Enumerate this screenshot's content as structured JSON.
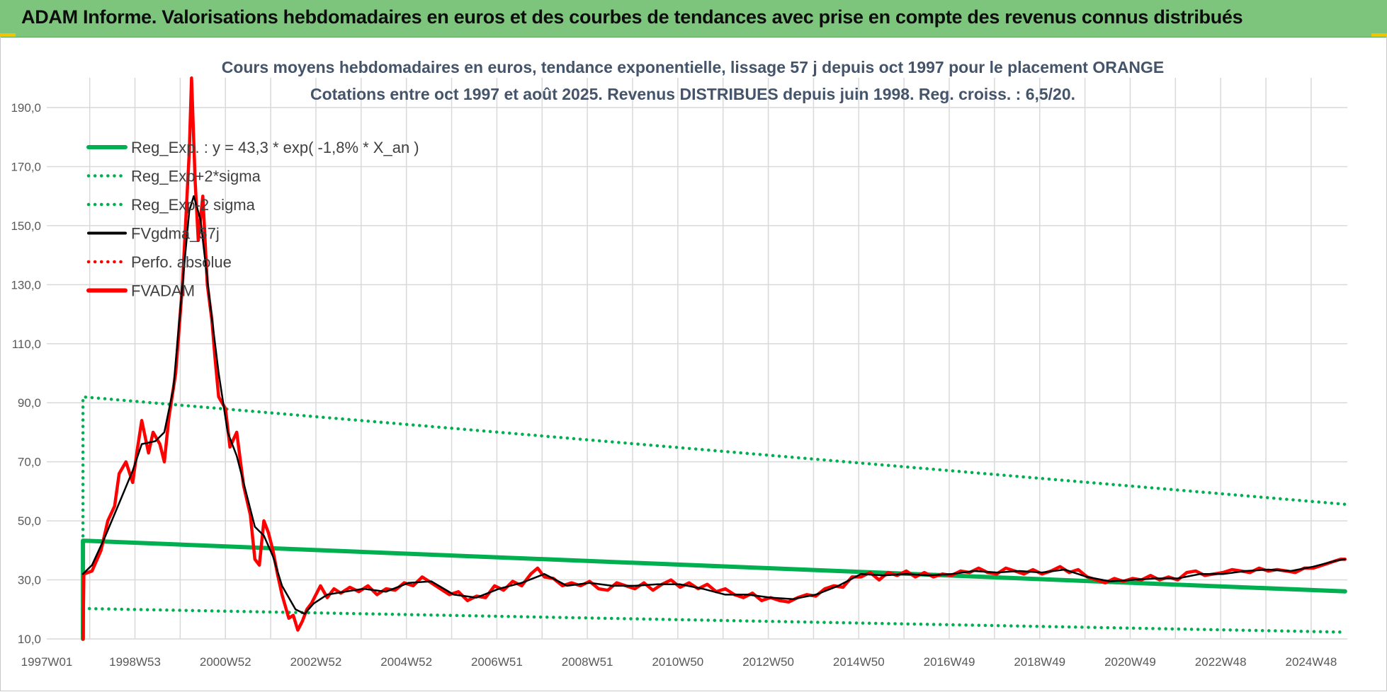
{
  "banner": {
    "title": "ADAM Informe. Valorisations hebdomadaires en euros et des courbes de tendances avec prise en compte des revenus connus distribués"
  },
  "colors": {
    "banner": "#7dc57c",
    "green": "#00b050",
    "red": "#ff0000",
    "black": "#000000",
    "grid": "#d9d9d9"
  },
  "chart_data": {
    "type": "line",
    "title_lines": [
      "Cours moyens hebdomadaires en euros, tendance exponentielle, lissage 57 j depuis oct 1997 pour le placement ORANGE",
      "Cotations entre oct 1997 et août 2025. Revenus DISTRIBUES depuis juin 1998. Reg. croiss. : 6,5/20."
    ],
    "xlabel": "",
    "ylabel": "",
    "ylim": [
      10,
      190
    ],
    "yticks": [
      "10,0",
      "30,0",
      "50,0",
      "70,0",
      "90,0",
      "110,0",
      "130,0",
      "150,0",
      "170,0",
      "190,0"
    ],
    "xlim": [
      1997.0,
      2025.75
    ],
    "xticks": [
      {
        "label": "1997W01",
        "x": 1997.0
      },
      {
        "label": "1998W53",
        "x": 1998.95
      },
      {
        "label": "2000W52",
        "x": 2000.95
      },
      {
        "label": "2002W52",
        "x": 2002.95
      },
      {
        "label": "2004W52",
        "x": 2004.95
      },
      {
        "label": "2006W51",
        "x": 2006.95
      },
      {
        "label": "2008W51",
        "x": 2008.95
      },
      {
        "label": "2010W50",
        "x": 2010.95
      },
      {
        "label": "2012W50",
        "x": 2012.95
      },
      {
        "label": "2014W50",
        "x": 2014.95
      },
      {
        "label": "2016W49",
        "x": 2016.95
      },
      {
        "label": "2018W49",
        "x": 2018.95
      },
      {
        "label": "2020W49",
        "x": 2020.95
      },
      {
        "label": "2022W48",
        "x": 2022.95
      },
      {
        "label": "2024W48",
        "x": 2024.95
      }
    ],
    "grid": true,
    "legend_position": "top-left",
    "series": [
      {
        "name": "Reg_Exp. : y = 43,3 * exp( -1,8% * X_an )",
        "color": "#00b050",
        "style": "solid",
        "points": [
          [
            1997.8,
            10.0
          ],
          [
            1997.8,
            43.3
          ],
          [
            2025.7,
            26.1
          ]
        ]
      },
      {
        "name": "Reg_Exp+2*sigma",
        "color": "#00b050",
        "style": "dotted",
        "points": [
          [
            1997.8,
            10.0
          ],
          [
            1997.8,
            92.0
          ],
          [
            2025.7,
            55.6
          ]
        ]
      },
      {
        "name": "Reg_Exp-2 sigma",
        "color": "#00b050",
        "style": "dotted",
        "points": [
          [
            1997.8,
            20.3
          ],
          [
            2025.7,
            12.3
          ]
        ]
      },
      {
        "name": "FVgdma_57j",
        "color": "#000000",
        "style": "solid",
        "points": [
          [
            1997.8,
            32.0
          ],
          [
            1998.0,
            35.0
          ],
          [
            1998.3,
            45.0
          ],
          [
            1998.6,
            56.0
          ],
          [
            1998.9,
            67.0
          ],
          [
            1999.1,
            76.0
          ],
          [
            1999.4,
            77.0
          ],
          [
            1999.6,
            80.0
          ],
          [
            1999.8,
            95.0
          ],
          [
            2000.0,
            130.0
          ],
          [
            2000.15,
            155.0
          ],
          [
            2000.25,
            160.0
          ],
          [
            2000.4,
            152.0
          ],
          [
            2000.6,
            125.0
          ],
          [
            2000.8,
            100.0
          ],
          [
            2001.0,
            80.0
          ],
          [
            2001.2,
            72.0
          ],
          [
            2001.4,
            60.0
          ],
          [
            2001.6,
            48.0
          ],
          [
            2001.8,
            45.0
          ],
          [
            2002.0,
            38.0
          ],
          [
            2002.2,
            28.0
          ],
          [
            2002.5,
            20.0
          ],
          [
            2002.7,
            18.5
          ],
          [
            2002.9,
            22.0
          ],
          [
            2003.2,
            25.0
          ],
          [
            2003.6,
            26.0
          ],
          [
            2004.0,
            27.0
          ],
          [
            2004.5,
            26.0
          ],
          [
            2005.0,
            29.0
          ],
          [
            2005.5,
            29.5
          ],
          [
            2006.0,
            25.0
          ],
          [
            2006.5,
            24.0
          ],
          [
            2007.0,
            27.0
          ],
          [
            2007.5,
            29.0
          ],
          [
            2008.0,
            32.0
          ],
          [
            2008.5,
            28.0
          ],
          [
            2009.0,
            29.0
          ],
          [
            2009.5,
            28.0
          ],
          [
            2010.0,
            28.0
          ],
          [
            2010.5,
            28.5
          ],
          [
            2011.0,
            28.5
          ],
          [
            2011.5,
            27.0
          ],
          [
            2012.0,
            25.0
          ],
          [
            2012.5,
            25.0
          ],
          [
            2013.0,
            24.0
          ],
          [
            2013.5,
            23.5
          ],
          [
            2014.0,
            25.0
          ],
          [
            2014.5,
            28.0
          ],
          [
            2015.0,
            32.0
          ],
          [
            2015.5,
            31.5
          ],
          [
            2016.0,
            32.0
          ],
          [
            2016.5,
            31.5
          ],
          [
            2017.0,
            32.0
          ],
          [
            2017.5,
            33.0
          ],
          [
            2018.0,
            32.5
          ],
          [
            2018.5,
            33.0
          ],
          [
            2019.0,
            32.5
          ],
          [
            2019.5,
            33.5
          ],
          [
            2020.0,
            31.0
          ],
          [
            2020.5,
            29.5
          ],
          [
            2021.0,
            30.0
          ],
          [
            2021.5,
            30.5
          ],
          [
            2022.0,
            30.5
          ],
          [
            2022.5,
            32.0
          ],
          [
            2023.0,
            32.0
          ],
          [
            2023.5,
            33.0
          ],
          [
            2024.0,
            33.5
          ],
          [
            2024.5,
            33.0
          ],
          [
            2025.0,
            34.5
          ],
          [
            2025.5,
            36.5
          ],
          [
            2025.7,
            37.0
          ]
        ]
      },
      {
        "name": "Perfo. absolue",
        "color": "#ff0000",
        "style": "dotted",
        "points": []
      },
      {
        "name": "FVADAM",
        "color": "#ff0000",
        "style": "solid",
        "points": [
          [
            1997.8,
            10.0
          ],
          [
            1997.82,
            32.0
          ],
          [
            1998.0,
            33.0
          ],
          [
            1998.2,
            40.0
          ],
          [
            1998.35,
            50.0
          ],
          [
            1998.5,
            55.0
          ],
          [
            1998.6,
            66.0
          ],
          [
            1998.75,
            70.0
          ],
          [
            1998.9,
            63.0
          ],
          [
            1999.0,
            74.0
          ],
          [
            1999.1,
            84.0
          ],
          [
            1999.25,
            73.0
          ],
          [
            1999.35,
            80.0
          ],
          [
            1999.5,
            76.0
          ],
          [
            1999.6,
            70.0
          ],
          [
            1999.7,
            85.0
          ],
          [
            1999.85,
            100.0
          ],
          [
            2000.0,
            130.0
          ],
          [
            2000.05,
            145.0
          ],
          [
            2000.15,
            175.0
          ],
          [
            2000.2,
            200.0
          ],
          [
            2000.28,
            165.0
          ],
          [
            2000.35,
            145.0
          ],
          [
            2000.45,
            160.0
          ],
          [
            2000.55,
            130.0
          ],
          [
            2000.65,
            118.0
          ],
          [
            2000.72,
            105.0
          ],
          [
            2000.8,
            92.0
          ],
          [
            2000.95,
            88.0
          ],
          [
            2001.05,
            75.0
          ],
          [
            2001.2,
            80.0
          ],
          [
            2001.35,
            62.0
          ],
          [
            2001.5,
            52.0
          ],
          [
            2001.6,
            37.0
          ],
          [
            2001.7,
            35.0
          ],
          [
            2001.8,
            50.0
          ],
          [
            2001.9,
            46.0
          ],
          [
            2002.0,
            40.0
          ],
          [
            2002.1,
            32.0
          ],
          [
            2002.2,
            25.0
          ],
          [
            2002.35,
            17.0
          ],
          [
            2002.45,
            18.0
          ],
          [
            2002.55,
            13.0
          ],
          [
            2002.65,
            16.0
          ],
          [
            2002.75,
            20.0
          ],
          [
            2002.85,
            22.0
          ],
          [
            2002.95,
            25.0
          ],
          [
            2003.05,
            28.0
          ],
          [
            2003.2,
            24.0
          ],
          [
            2003.35,
            27.0
          ],
          [
            2003.5,
            25.5
          ],
          [
            2003.7,
            27.5
          ],
          [
            2003.9,
            26.0
          ],
          [
            2004.1,
            28.0
          ],
          [
            2004.3,
            25.0
          ],
          [
            2004.5,
            27.0
          ],
          [
            2004.7,
            26.5
          ],
          [
            2004.9,
            29.0
          ],
          [
            2005.1,
            28.0
          ],
          [
            2005.3,
            31.0
          ],
          [
            2005.5,
            29.0
          ],
          [
            2005.7,
            27.0
          ],
          [
            2005.9,
            25.0
          ],
          [
            2006.1,
            26.0
          ],
          [
            2006.3,
            23.0
          ],
          [
            2006.5,
            24.5
          ],
          [
            2006.7,
            24.0
          ],
          [
            2006.9,
            28.0
          ],
          [
            2007.1,
            26.5
          ],
          [
            2007.3,
            29.5
          ],
          [
            2007.5,
            28.0
          ],
          [
            2007.7,
            32.0
          ],
          [
            2007.85,
            34.0
          ],
          [
            2008.0,
            31.0
          ],
          [
            2008.2,
            30.5
          ],
          [
            2008.4,
            28.0
          ],
          [
            2008.6,
            29.0
          ],
          [
            2008.8,
            28.0
          ],
          [
            2009.0,
            29.5
          ],
          [
            2009.2,
            27.0
          ],
          [
            2009.4,
            26.5
          ],
          [
            2009.6,
            29.0
          ],
          [
            2009.8,
            28.0
          ],
          [
            2010.0,
            27.0
          ],
          [
            2010.2,
            29.0
          ],
          [
            2010.4,
            26.5
          ],
          [
            2010.6,
            28.5
          ],
          [
            2010.8,
            30.0
          ],
          [
            2011.0,
            27.5
          ],
          [
            2011.2,
            29.0
          ],
          [
            2011.4,
            27.0
          ],
          [
            2011.6,
            28.5
          ],
          [
            2011.8,
            26.0
          ],
          [
            2012.0,
            27.0
          ],
          [
            2012.2,
            25.0
          ],
          [
            2012.4,
            24.0
          ],
          [
            2012.6,
            25.5
          ],
          [
            2012.8,
            23.0
          ],
          [
            2013.0,
            24.0
          ],
          [
            2013.2,
            23.0
          ],
          [
            2013.4,
            22.5
          ],
          [
            2013.6,
            24.0
          ],
          [
            2013.8,
            25.0
          ],
          [
            2014.0,
            24.5
          ],
          [
            2014.2,
            27.0
          ],
          [
            2014.4,
            28.0
          ],
          [
            2014.6,
            27.5
          ],
          [
            2014.8,
            31.0
          ],
          [
            2015.0,
            31.0
          ],
          [
            2015.2,
            32.5
          ],
          [
            2015.4,
            30.0
          ],
          [
            2015.6,
            32.5
          ],
          [
            2015.8,
            31.5
          ],
          [
            2016.0,
            33.0
          ],
          [
            2016.2,
            31.0
          ],
          [
            2016.4,
            32.5
          ],
          [
            2016.6,
            31.0
          ],
          [
            2016.8,
            32.0
          ],
          [
            2017.0,
            31.5
          ],
          [
            2017.2,
            33.0
          ],
          [
            2017.4,
            32.5
          ],
          [
            2017.6,
            34.0
          ],
          [
            2017.8,
            32.5
          ],
          [
            2018.0,
            32.0
          ],
          [
            2018.2,
            34.0
          ],
          [
            2018.4,
            33.0
          ],
          [
            2018.6,
            32.0
          ],
          [
            2018.8,
            33.5
          ],
          [
            2019.0,
            32.0
          ],
          [
            2019.2,
            33.0
          ],
          [
            2019.4,
            34.5
          ],
          [
            2019.6,
            32.5
          ],
          [
            2019.8,
            33.5
          ],
          [
            2020.0,
            31.0
          ],
          [
            2020.2,
            30.0
          ],
          [
            2020.4,
            29.0
          ],
          [
            2020.6,
            30.5
          ],
          [
            2020.8,
            29.5
          ],
          [
            2021.0,
            30.5
          ],
          [
            2021.2,
            30.0
          ],
          [
            2021.4,
            31.5
          ],
          [
            2021.6,
            30.0
          ],
          [
            2021.8,
            31.0
          ],
          [
            2022.0,
            30.0
          ],
          [
            2022.2,
            32.5
          ],
          [
            2022.4,
            33.0
          ],
          [
            2022.6,
            31.5
          ],
          [
            2022.8,
            32.0
          ],
          [
            2023.0,
            32.5
          ],
          [
            2023.2,
            33.5
          ],
          [
            2023.4,
            33.0
          ],
          [
            2023.6,
            32.5
          ],
          [
            2023.8,
            34.0
          ],
          [
            2024.0,
            33.0
          ],
          [
            2024.2,
            33.5
          ],
          [
            2024.4,
            33.0
          ],
          [
            2024.6,
            32.5
          ],
          [
            2024.8,
            34.0
          ],
          [
            2025.0,
            34.0
          ],
          [
            2025.2,
            35.0
          ],
          [
            2025.4,
            36.0
          ],
          [
            2025.6,
            37.0
          ],
          [
            2025.7,
            37.0
          ]
        ]
      }
    ]
  }
}
